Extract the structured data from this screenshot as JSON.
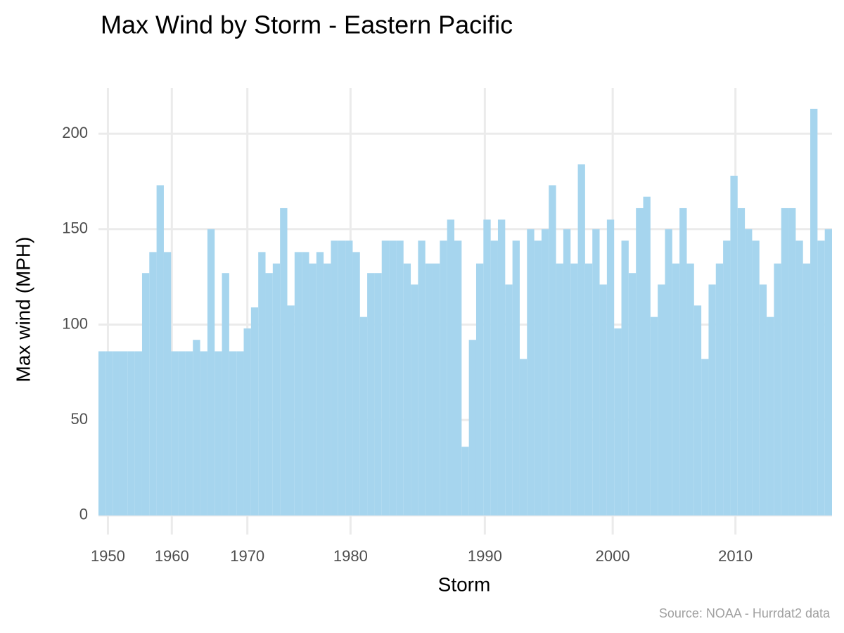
{
  "chart_data": {
    "type": "bar",
    "title": "Max Wind by Storm - Eastern Pacific",
    "x_label": "Storm",
    "y_label": "Max wind (MPH)",
    "caption": "Source: NOAA - Hurrdat2 data",
    "color": "#a6d5ee",
    "grid": true,
    "x": [
      0,
      10,
      20,
      30,
      40,
      50,
      60,
      70,
      80,
      90,
      100,
      110,
      120,
      130,
      140,
      150,
      160,
      170,
      180,
      190,
      200,
      210,
      220,
      230,
      240,
      250,
      260,
      270,
      280,
      290,
      300,
      310,
      320,
      330,
      340,
      350,
      360,
      370,
      380,
      390,
      400,
      410,
      420,
      430,
      440,
      450,
      460,
      470,
      480,
      490,
      500,
      510,
      520,
      530,
      540,
      550,
      560,
      570,
      580,
      590,
      600,
      610,
      620,
      630,
      640,
      650,
      660,
      670,
      680,
      690,
      700,
      710,
      720,
      730,
      740,
      750,
      760,
      770,
      780,
      790,
      800,
      810,
      820,
      830,
      840,
      850,
      860,
      870,
      880,
      890,
      900,
      910,
      920,
      930,
      940,
      950,
      960,
      970,
      980,
      990,
      1000
    ],
    "values": [
      86,
      86,
      86,
      86,
      86,
      86,
      127,
      138,
      173,
      138,
      86,
      86,
      86,
      92,
      86,
      150,
      86,
      127,
      86,
      86,
      98,
      109,
      138,
      127,
      132,
      161,
      110,
      138,
      138,
      132,
      138,
      132,
      144,
      144,
      144,
      138,
      104,
      127,
      127,
      144,
      144,
      144,
      132,
      121,
      144,
      132,
      132,
      144,
      155,
      144,
      36,
      92,
      132,
      155,
      144,
      155,
      121,
      144,
      82,
      150,
      144,
      150,
      173,
      132,
      150,
      132,
      184,
      132,
      150,
      121,
      155,
      98,
      144,
      127,
      161,
      167,
      104,
      121,
      150,
      132,
      161,
      132,
      110,
      82,
      121,
      132,
      144,
      178,
      161,
      150,
      144,
      121,
      104,
      132,
      161,
      161,
      144,
      132,
      213,
      144,
      150
    ],
    "xlim": [
      -5,
      1005
    ],
    "ylim": [
      -10,
      224
    ],
    "xticks": [
      {
        "value": 8,
        "label": "1950"
      },
      {
        "value": 96,
        "label": "1960"
      },
      {
        "value": 200,
        "label": "1970"
      },
      {
        "value": 342,
        "label": "1980"
      },
      {
        "value": 527,
        "label": "1990"
      },
      {
        "value": 703,
        "label": "2000"
      },
      {
        "value": 872,
        "label": "2010"
      }
    ],
    "yticks": [
      0,
      50,
      100,
      150,
      200
    ]
  }
}
